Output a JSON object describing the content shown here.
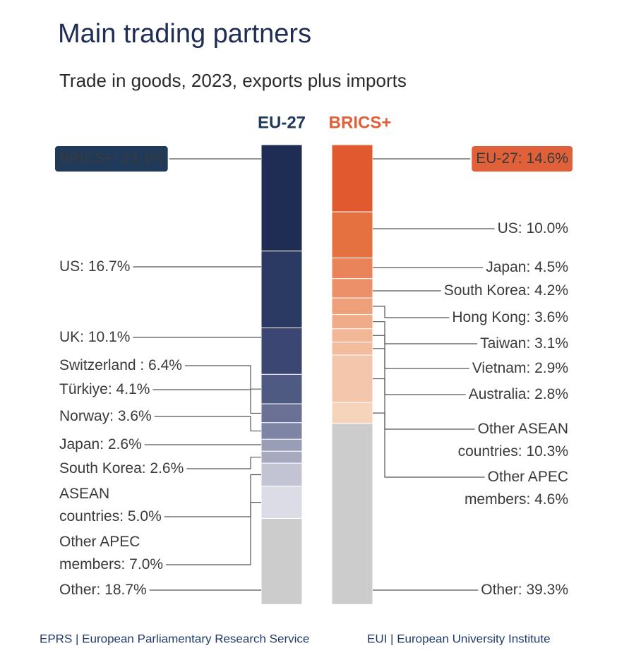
{
  "chart_data": {
    "type": "stacked-column",
    "title": "Main trading partners",
    "subtitle": "Trade in goods, 2023, exports plus imports",
    "columns": [
      {
        "name": "EU-27",
        "accent": "#1f3a5a",
        "labels": [
          "BRICS+: 23.1%",
          "US: 16.7%",
          "UK: 10.1%",
          "Switzerland : 6.4%",
          "Türkiye: 4.1%",
          "Norway: 3.6%",
          "Japan: 2.6%",
          "South Korea: 2.6%",
          "ASEAN\ncountries: 5.0%",
          "Other APEC\nmembers: 7.0%",
          "Other: 18.7%"
        ],
        "values": [
          23.1,
          16.7,
          10.1,
          6.4,
          4.1,
          3.6,
          2.6,
          2.6,
          5.0,
          7.0,
          18.7
        ],
        "colors": [
          "#1f2d55",
          "#2b3a63",
          "#3b4672",
          "#4f5a82",
          "#6a7194",
          "#7e84a3",
          "#9a9db6",
          "#a7a9bf",
          "#c2c3d3",
          "#dcdce6",
          "#cccccc"
        ]
      },
      {
        "name": "BRICS+",
        "accent": "#e0603a",
        "labels": [
          "EU-27: 14.6%",
          "US: 10.0%",
          "Japan: 4.5%",
          "South Korea: 4.2%",
          "Hong Kong: 3.6%",
          "Taiwan: 3.1%",
          "Vietnam: 2.9%",
          "Australia: 2.8%",
          "Other ASEAN\ncountries: 10.3%",
          "Other APEC\nmembers: 4.6%",
          "Other: 39.3%"
        ],
        "values": [
          14.6,
          10.0,
          4.5,
          4.2,
          3.6,
          3.1,
          2.9,
          2.8,
          10.3,
          4.6,
          39.3
        ],
        "colors": [
          "#e15a2f",
          "#e57040",
          "#e8835a",
          "#eb9068",
          "#eea07b",
          "#f0ab88",
          "#f2b796",
          "#f3bc9f",
          "#f4c6ab",
          "#f6d4bc",
          "#cccccc"
        ]
      }
    ],
    "sources": [
      "EPRS | European Parliamentary Research Service",
      "EUI | European University Institute"
    ]
  }
}
